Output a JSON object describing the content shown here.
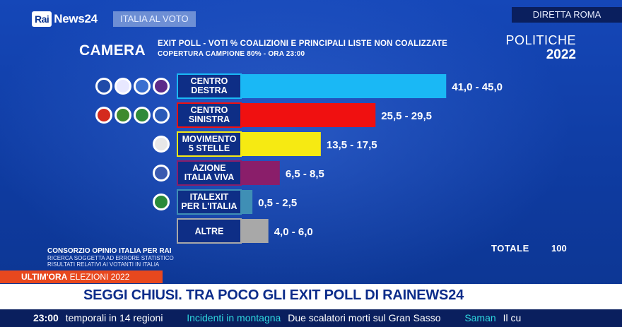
{
  "header": {
    "logo_rai": "Rai",
    "logo_news": "News24",
    "topic": "ITALIA AL VOTO",
    "live_prefix": "DIRETTA",
    "live_city": "ROMA"
  },
  "panel": {
    "chamber": "CAMERA",
    "subtitle": "EXIT POLL - VOTI % COALIZIONI E PRINCIPALI LISTE NON COALIZZATE",
    "coverage": "COPERTURA CAMPIONE 80% - ORA 23:00",
    "election_line1": "POLITICHE",
    "election_line2": "2022",
    "source": "CONSORZIO OPINIO ITALIA PER RAI",
    "note1": "RICERCA SOGGETTA AD ERRORE STATISTICO",
    "note2": "RISULTATI RELATIVI AI VOTANTI IN ITALIA",
    "total_label": "TOTALE",
    "total_value": "100"
  },
  "chart_data": {
    "type": "bar",
    "orientation": "horizontal",
    "categories": [
      "CENTRO DESTRA",
      "CENTRO SINISTRA",
      "MOVIMENTO 5 STELLE",
      "AZIONE ITALIA VIVA",
      "ITALEXIT PER L'ITALIA",
      "ALTRE"
    ],
    "category_lines": [
      [
        "CENTRO",
        "DESTRA"
      ],
      [
        "CENTRO",
        "SINISTRA"
      ],
      [
        "MOVIMENTO",
        "5 STELLE"
      ],
      [
        "AZIONE",
        "ITALIA VIVA"
      ],
      [
        "ITALEXIT",
        "PER L'ITALIA"
      ],
      [
        "ALTRE"
      ]
    ],
    "ranges": [
      [
        41.0,
        45.0
      ],
      [
        25.5,
        29.5
      ],
      [
        13.5,
        17.5
      ],
      [
        6.5,
        8.5
      ],
      [
        0.5,
        2.5
      ],
      [
        4.0,
        6.0
      ]
    ],
    "value_labels": [
      "41,0 - 45,0",
      "25,5 - 29,5",
      "13,5 - 17,5",
      "6,5 - 8,5",
      "0,5 - 2,5",
      "4,0 - 6,0"
    ],
    "colors": [
      "#1ab8f5",
      "#f01010",
      "#f6ea12",
      "#8a1e6a",
      "#3f8fb5",
      "#a8a8a8"
    ],
    "legend_logos": [
      4,
      4,
      1,
      1,
      1,
      0
    ]
  },
  "lower_third": {
    "breaking_label": "ULTIM'ORA",
    "breaking_topic": "ELEZIONI 2022",
    "headline": "SEGGI CHIUSI. TRA POCO GLI EXIT POLL DI RAINEWS24",
    "ticker_time": "23:00",
    "ticker_1": "temporali in 14 regioni",
    "ticker_2": "Incidenti in montagna",
    "ticker_3": "Due scalatori morti sul Gran Sasso",
    "ticker_4": "Saman",
    "ticker_5": "Il cu"
  }
}
